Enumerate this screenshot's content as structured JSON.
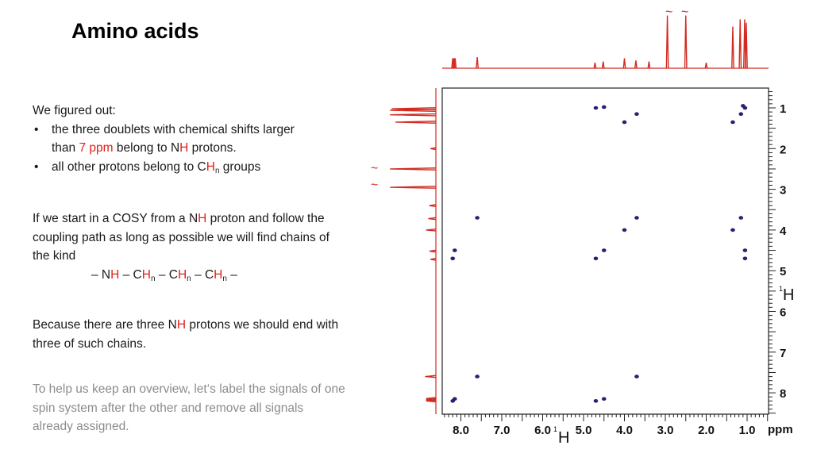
{
  "title": "Amino acids",
  "block1": {
    "heading": "We figured out:",
    "bullet_char": "•",
    "b1_line1": "the three doublets with chemical shifts larger",
    "b1_line2_pre": "than ",
    "b1_line2_red": "7 ppm",
    "b1_line2_mid": " belong to N",
    "b1_line2_h": "H",
    "b1_line2_post": " protons.",
    "b2_pre": "all other protons belong to C",
    "b2_h": "H",
    "b2_sub": "n",
    "b2_post": " groups"
  },
  "block2": {
    "line1_pre": "If we start in a COSY from a N",
    "line1_h": "H",
    "line1_post": " proton and follow the",
    "line2": "coupling path as long as possible we will find chains of",
    "line3": "the kind",
    "chain": {
      "p1": "– N",
      "h1": "H",
      "p2": " – C",
      "h2": "H",
      "s2": "n",
      "p3": " – C",
      "h3": "H",
      "s3": "n",
      "p4": " – C",
      "h4": "H",
      "s4": "n",
      "p5": " –"
    }
  },
  "block3": {
    "line1_pre": "Because there are three N",
    "line1_h": "H",
    "line1_post": " protons we should end with",
    "line2": "three of such chains."
  },
  "block4": {
    "line1": "To help us keep an overview, let‘s label the signals of one",
    "line2": "spin system after the other and remove all signals",
    "line3": "already assigned."
  },
  "chart_data": {
    "type": "scatter",
    "subtype": "2D COSY NMR spectrum",
    "x_axis": {
      "ticks": [
        "8.0",
        "7.0",
        "6.0",
        "5.0",
        "4.0",
        "3.0",
        "2.0",
        "1.0"
      ],
      "unit": "ppm",
      "label_sup": "1",
      "label": "H",
      "reversed": true
    },
    "y_axis": {
      "ticks": [
        "1",
        "2",
        "3",
        "4",
        "5",
        "6",
        "7",
        "8"
      ],
      "label_sup": "1",
      "label": "H"
    },
    "peak_color": "#2a1f70",
    "spectrum_color": "#d32a20",
    "peaks": [
      {
        "x": 4.7,
        "y": 1.0
      },
      {
        "x": 4.5,
        "y": 0.98
      },
      {
        "x": 3.7,
        "y": 1.15
      },
      {
        "x": 4.0,
        "y": 1.35
      },
      {
        "x": 1.05,
        "y": 1.0
      },
      {
        "x": 1.1,
        "y": 0.95
      },
      {
        "x": 1.15,
        "y": 1.15
      },
      {
        "x": 1.35,
        "y": 1.35
      },
      {
        "x": 7.6,
        "y": 3.7
      },
      {
        "x": 3.7,
        "y": 3.7
      },
      {
        "x": 1.15,
        "y": 3.7
      },
      {
        "x": 4.0,
        "y": 4.0
      },
      {
        "x": 1.35,
        "y": 4.0
      },
      {
        "x": 8.15,
        "y": 4.5
      },
      {
        "x": 4.5,
        "y": 4.5
      },
      {
        "x": 1.05,
        "y": 4.5
      },
      {
        "x": 8.2,
        "y": 4.7
      },
      {
        "x": 4.7,
        "y": 4.7
      },
      {
        "x": 1.05,
        "y": 4.7
      },
      {
        "x": 7.6,
        "y": 7.6
      },
      {
        "x": 3.7,
        "y": 7.6
      },
      {
        "x": 8.15,
        "y": 8.15
      },
      {
        "x": 8.2,
        "y": 8.2
      },
      {
        "x": 4.5,
        "y": 8.15
      },
      {
        "x": 4.7,
        "y": 8.2
      }
    ],
    "spectrum_1d": [
      {
        "ppm": 8.2,
        "h": 0.18
      },
      {
        "ppm": 8.17,
        "h": 0.18
      },
      {
        "ppm": 8.14,
        "h": 0.18
      },
      {
        "ppm": 7.6,
        "h": 0.2
      },
      {
        "ppm": 4.72,
        "h": 0.1
      },
      {
        "ppm": 4.52,
        "h": 0.12
      },
      {
        "ppm": 4.0,
        "h": 0.18
      },
      {
        "ppm": 3.72,
        "h": 0.14
      },
      {
        "ppm": 3.4,
        "h": 0.12
      },
      {
        "ppm": 2.95,
        "h": 0.95
      },
      {
        "ppm": 2.5,
        "h": 0.95
      },
      {
        "ppm": 2.0,
        "h": 0.1
      },
      {
        "ppm": 1.35,
        "h": 0.75
      },
      {
        "ppm": 1.17,
        "h": 0.88
      },
      {
        "ppm": 1.06,
        "h": 0.88
      },
      {
        "ppm": 1.02,
        "h": 0.82
      }
    ],
    "squiggle": "~"
  }
}
